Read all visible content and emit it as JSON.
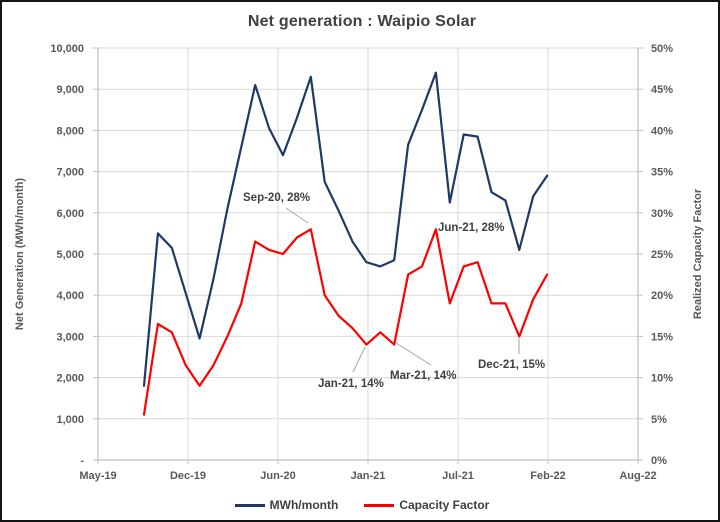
{
  "chart_data": {
    "type": "line",
    "title": "Net generation : Waipio Solar",
    "legend_position": "bottom",
    "categories": [
      "Sep-19",
      "Oct-19",
      "Nov-19",
      "Dec-19",
      "Jan-20",
      "Feb-20",
      "Mar-20",
      "Apr-20",
      "May-20",
      "Jun-20",
      "Jul-20",
      "Aug-20",
      "Sep-20",
      "Oct-20",
      "Nov-20",
      "Dec-20",
      "Jan-21",
      "Feb-21",
      "Mar-21",
      "Apr-21",
      "May-21",
      "Jun-21",
      "Jul-21",
      "Aug-21",
      "Sep-21",
      "Oct-21",
      "Nov-21",
      "Dec-21",
      "Jan-22",
      "Feb-22"
    ],
    "series": [
      {
        "name": "MWh/month",
        "axis": "left",
        "color": "#1f3864",
        "values": [
          1800,
          5500,
          5150,
          4050,
          2950,
          4400,
          6100,
          7600,
          9100,
          8050,
          7400,
          8300,
          9300,
          6750,
          6050,
          5300,
          4800,
          4700,
          4850,
          7650,
          8500,
          9400,
          6250,
          7900,
          7850,
          6500,
          6300,
          5100,
          6400,
          6900
        ]
      },
      {
        "name": "Capacity Factor",
        "axis": "right",
        "color": "#ff0000",
        "values": [
          5.5,
          16.5,
          15.5,
          11.5,
          9,
          11.5,
          15,
          19,
          26.5,
          25.5,
          25,
          27,
          28,
          20,
          17.5,
          16,
          14,
          15.5,
          14,
          22.5,
          23.5,
          28,
          19,
          23.5,
          24,
          19,
          19,
          15,
          19.5,
          22.5
        ]
      }
    ],
    "left_axis": {
      "title": "Net Generation (MWh/month)",
      "min": 0,
      "max": 10000,
      "tick_labels": [
        "10,000",
        "9,000",
        "8,000",
        "7,000",
        "6,000",
        "5,000",
        "4,000",
        "3,000",
        "2,000",
        "1,000",
        "-"
      ]
    },
    "right_axis": {
      "title": "Realized Capacity Factor",
      "min": 0,
      "max": 50,
      "tick_labels": [
        "50%",
        "45%",
        "40%",
        "35%",
        "30%",
        "25%",
        "20%",
        "15%",
        "10%",
        "5%",
        "0%"
      ]
    },
    "x_axis": {
      "tick_labels": [
        "May-19",
        "Dec-19",
        "Jun-20",
        "Jan-21",
        "Jul-21",
        "Feb-22",
        "Aug-22"
      ]
    },
    "annotations": [
      {
        "label": "Sep-20, 28%",
        "series": "Capacity Factor",
        "category": "Sep-20",
        "value": "28%"
      },
      {
        "label": "Jun-21, 28%",
        "series": "Capacity Factor",
        "category": "Jun-21",
        "value": "28%"
      },
      {
        "label": "Jan-21, 14%",
        "series": "Capacity Factor",
        "category": "Jan-21",
        "value": "14%"
      },
      {
        "label": "Mar-21, 14%",
        "series": "Capacity Factor",
        "category": "Mar-21",
        "value": "14%"
      },
      {
        "label": "Dec-21, 15%",
        "series": "Capacity Factor",
        "category": "Dec-21",
        "value": "15%"
      }
    ],
    "grid": true,
    "colors": {
      "gridline": "#d9d9d9",
      "axis_line": "#bfbfbf",
      "tick_text": "#595959",
      "title_text": "#404040",
      "annotation_text": "#404040",
      "leader_line": "#a6a6a6"
    }
  }
}
